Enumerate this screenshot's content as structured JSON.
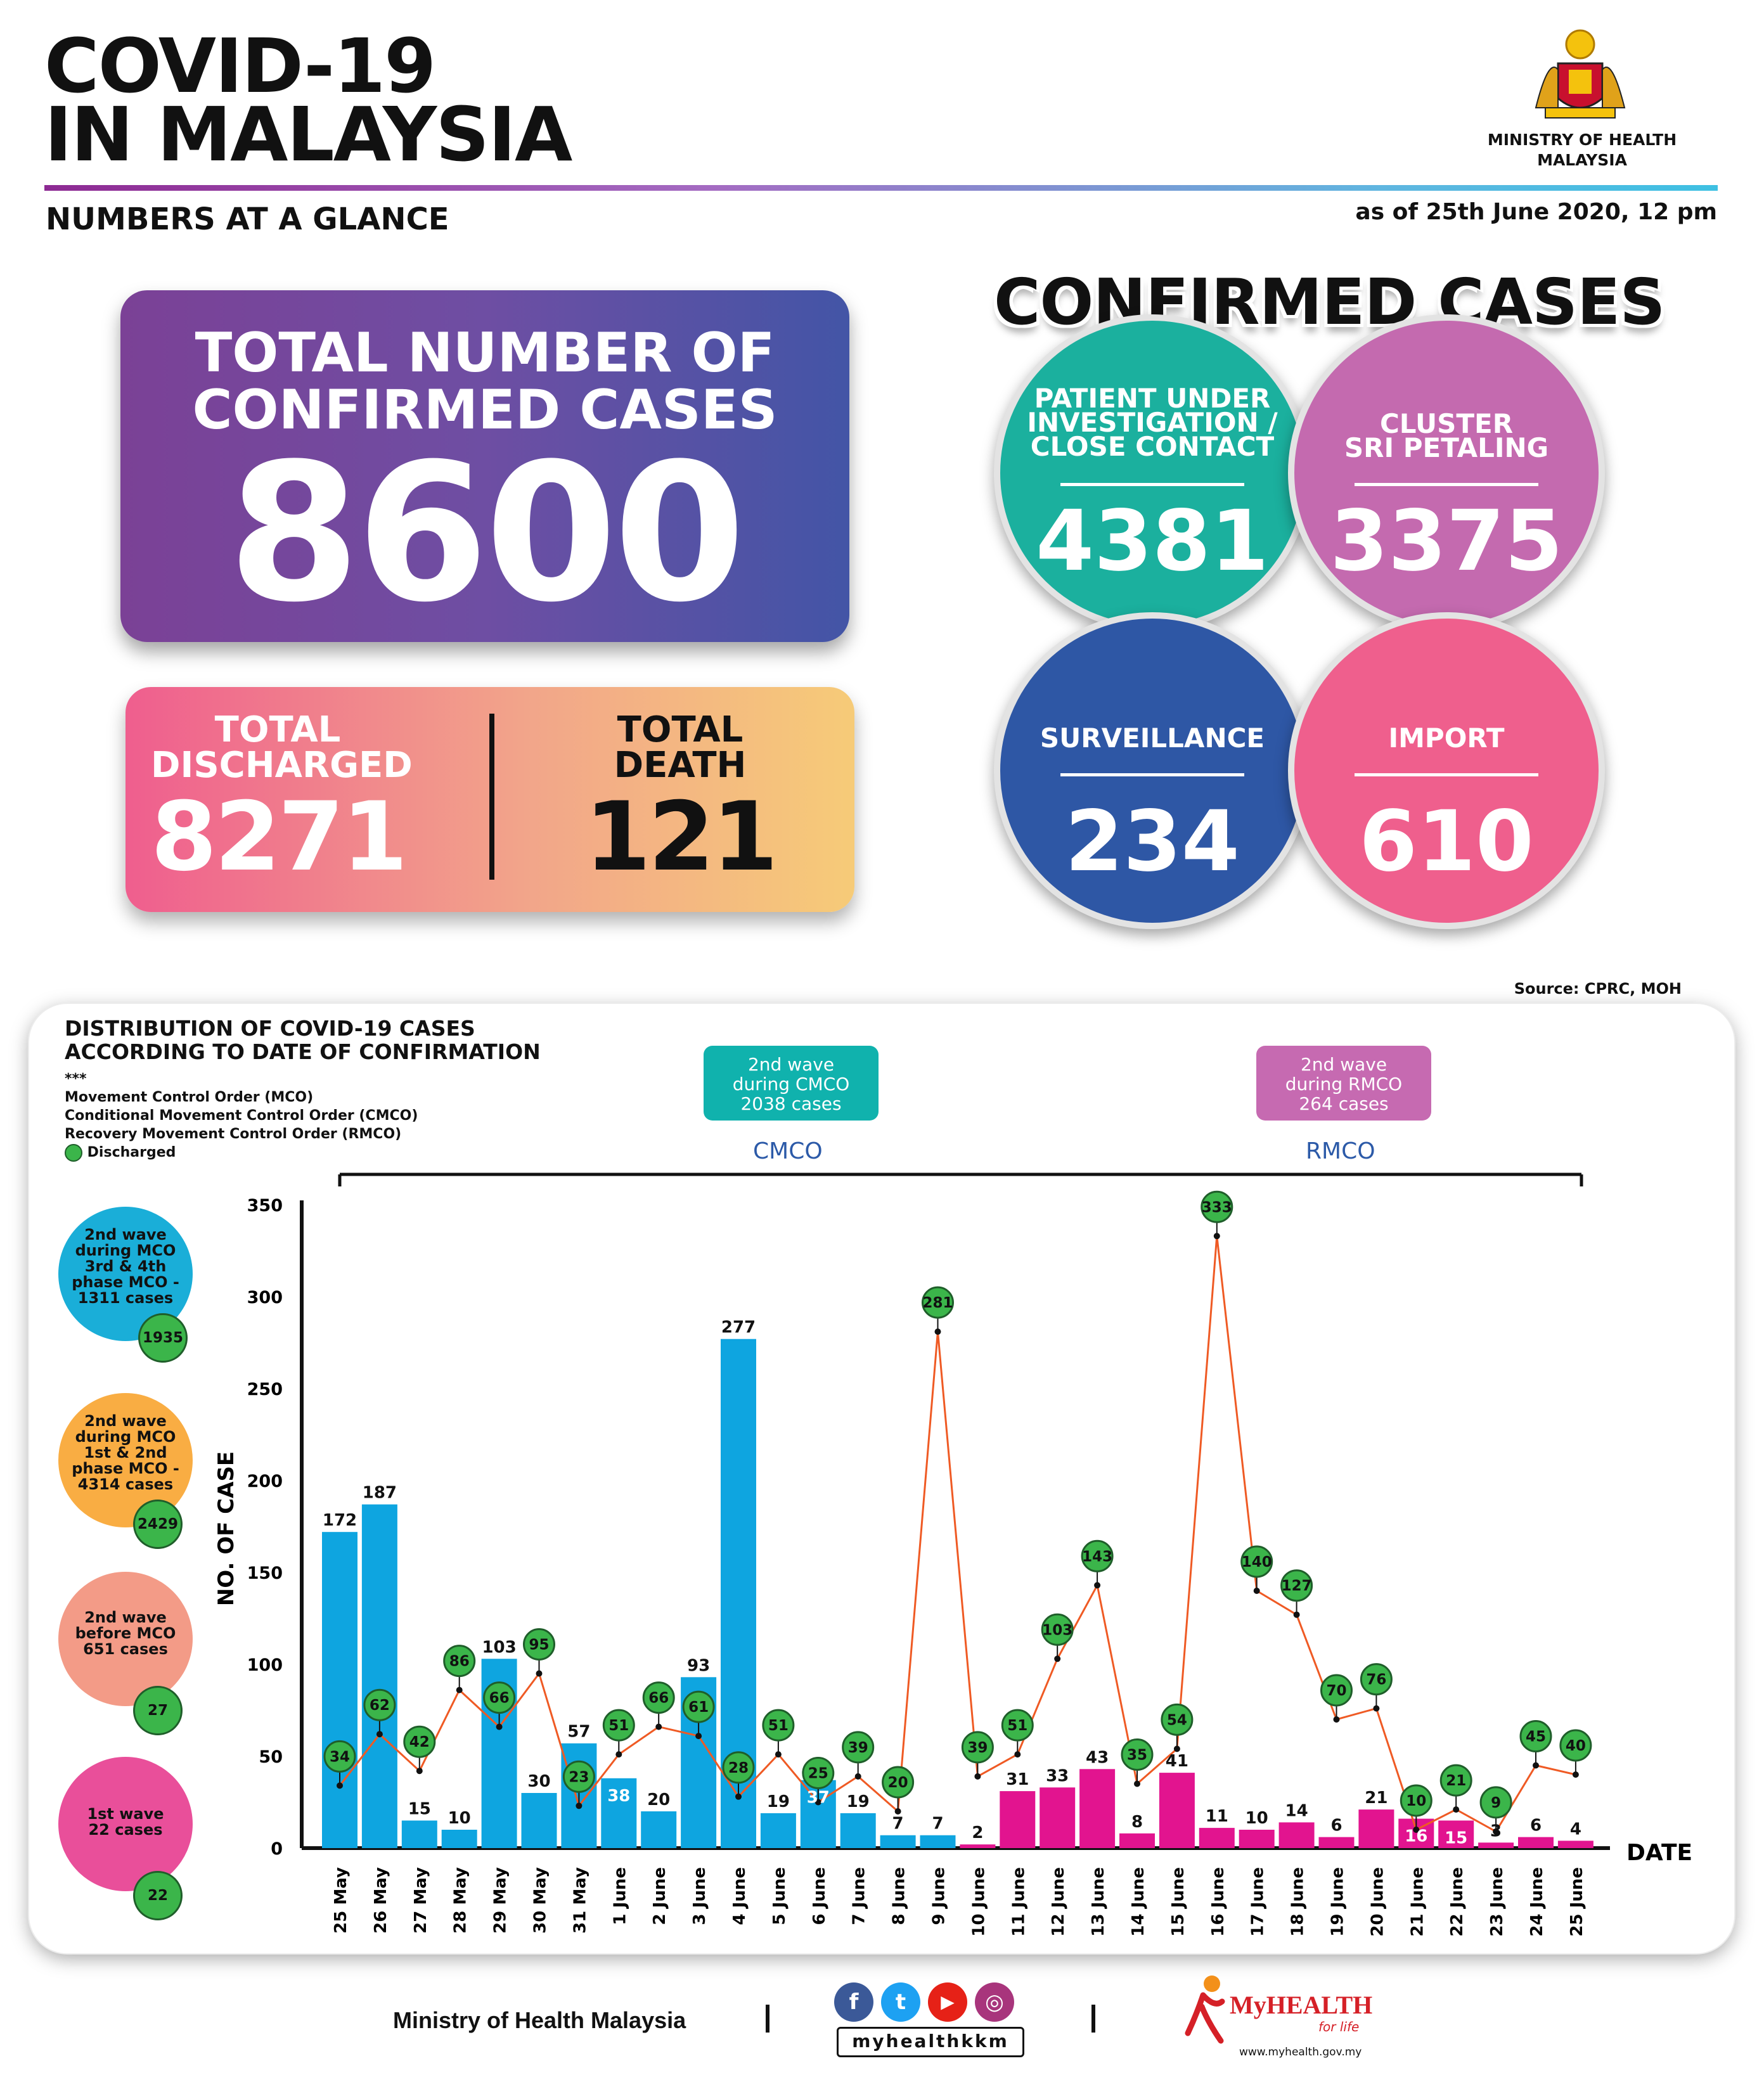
{
  "header": {
    "title_line1": "COVID-19",
    "title_line2": "IN MALAYSIA",
    "subtitle": "NUMBERS AT A GLANCE",
    "as_of": "as of 25th June 2020, 12 pm",
    "ministry_line1": "MINISTRY OF HEALTH",
    "ministry_line2": "MALAYSIA"
  },
  "totals": {
    "confirmed_label_line1": "TOTAL NUMBER OF",
    "confirmed_label_line2": "CONFIRMED CASES",
    "confirmed_value": "8600",
    "discharged_label_line1": "TOTAL",
    "discharged_label_line2": "DISCHARGED",
    "discharged_value": "8271",
    "death_label_line1": "TOTAL",
    "death_label_line2": "DEATH",
    "death_value": "121"
  },
  "confirmed_cases": {
    "title": "CONFIRMED CASES",
    "pui": {
      "label_line1": "PATIENT UNDER",
      "label_line2": "INVESTIGATION /",
      "label_line3": "CLOSE CONTACT",
      "value": "4381",
      "color": "#1bb09e"
    },
    "cluster": {
      "label_line1": "CLUSTER",
      "label_line2": "SRI PETALING",
      "value": "3375",
      "color": "#c46aaf"
    },
    "surveillance": {
      "label": "SURVEILLANCE",
      "value": "234",
      "color": "#2e57a5"
    },
    "import": {
      "label": "IMPORT",
      "value": "610",
      "color": "#ef5f8d"
    },
    "source": "Source: CPRC, MOH"
  },
  "distribution": {
    "title_line1": "DISTRIBUTION OF COVID-19 CASES",
    "title_line2": "ACCORDING TO DATE OF CONFIRMATION",
    "legend_dots": "***",
    "legend_mco": "Movement Control Order (MCO)",
    "legend_cmco": "Conditional Movement Control Order (CMCO)",
    "legend_rmco": "Recovery Movement Control Order (RMCO)",
    "legend_discharged": "Discharged",
    "cmco_badge": [
      "2nd wave",
      "during CMCO",
      "2038 cases"
    ],
    "rmco_badge": [
      "2nd wave",
      "during RMCO",
      "264 cases"
    ],
    "cmco_label": "CMCO",
    "rmco_label": "RMCO",
    "side_waves": [
      {
        "lines": [
          "2nd wave",
          "during MCO",
          "3rd & 4th",
          "phase MCO -",
          "1311 cases"
        ],
        "discharged": "1935",
        "color": "#1aaed8"
      },
      {
        "lines": [
          "2nd wave",
          "during MCO",
          "1st & 2nd",
          "phase MCO -",
          "4314 cases"
        ],
        "discharged": "2429",
        "color": "#f9ad43"
      },
      {
        "lines": [
          "2nd wave",
          "before MCO",
          "651 cases"
        ],
        "discharged": "27",
        "color": "#f39b87"
      },
      {
        "lines": [
          "1st wave",
          "22 cases"
        ],
        "discharged": "22",
        "color": "#e94f9a"
      }
    ]
  },
  "chart_data": {
    "type": "bar",
    "ylabel": "NO. OF CASE",
    "xlabel": "DATE",
    "ylim": [
      0,
      350
    ],
    "yticks": [
      0,
      50,
      100,
      150,
      200,
      250,
      300,
      350
    ],
    "categories": [
      "25 May",
      "26 May",
      "27 May",
      "28 May",
      "29 May",
      "30 May",
      "31 May",
      "1 June",
      "2 June",
      "3 June",
      "4 June",
      "5 June",
      "6 June",
      "7 June",
      "8 June",
      "9 June",
      "10 June",
      "11 June",
      "12 June",
      "13 June",
      "14 June",
      "15 June",
      "16 June",
      "17 June",
      "18 June",
      "19 June",
      "20 June",
      "21 June",
      "22 June",
      "23 June",
      "24 June",
      "25 June"
    ],
    "series": [
      {
        "values": [
          172,
          187,
          15,
          10,
          103,
          30,
          57,
          38,
          20,
          93,
          277,
          19,
          37,
          19,
          7,
          7,
          2,
          31,
          33,
          43,
          8,
          41,
          11,
          10,
          14,
          6,
          21,
          16,
          15,
          3,
          6,
          4
        ]
      },
      {
        "name": "Discharged",
        "values": [
          34,
          62,
          42,
          86,
          66,
          95,
          23,
          51,
          66,
          61,
          28,
          51,
          25,
          39,
          20,
          281,
          39,
          51,
          103,
          143,
          35,
          54,
          333,
          140,
          127,
          70,
          76,
          10,
          21,
          9,
          45,
          40
        ]
      }
    ],
    "bar_colors": {
      "cmco": "#0ea5e0",
      "rmco": "#e2148f"
    },
    "line_color": "#ef5a24",
    "discharged_color": "#3bb54a"
  },
  "footer": {
    "ministry": "Ministry of Health Malaysia",
    "handle": "myhealthkkm",
    "brand": "MyHEALTH",
    "brand_sub": "for life",
    "brand_url": "www.myhealth.gov.my",
    "social": [
      {
        "glyph": "f",
        "color": "#3b5998"
      },
      {
        "glyph": "t",
        "color": "#1da1f2"
      },
      {
        "glyph": "▶",
        "color": "#e62117"
      },
      {
        "glyph": "◎",
        "color": "#a8357c"
      }
    ]
  }
}
